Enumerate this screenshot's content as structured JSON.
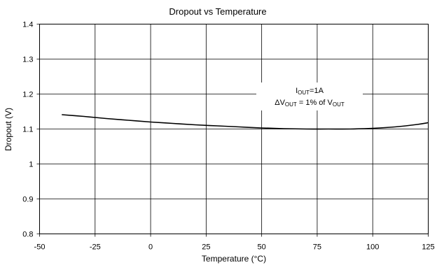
{
  "chart_data": {
    "type": "line",
    "title": "Dropout vs Temperature",
    "xlabel": "Temperature (°C)",
    "ylabel": "Dropout (V)",
    "xlim": [
      -50,
      125
    ],
    "ylim": [
      0.8,
      1.4
    ],
    "x_ticks": [
      -50,
      -25,
      0,
      25,
      50,
      75,
      100,
      125
    ],
    "y_ticks": [
      0.8,
      0.9,
      1,
      1.1,
      1.2,
      1.3,
      1.4
    ],
    "y_tick_labels": [
      "0.8",
      "0.9",
      "1",
      "1.1",
      "1.2",
      "1.3",
      "1.4"
    ],
    "grid": true,
    "series": [
      {
        "x": [
          -40,
          -30,
          -20,
          -10,
          0,
          10,
          20,
          30,
          40,
          50,
          60,
          70,
          80,
          90,
          100,
          110,
          120,
          125
        ],
        "values": [
          1.141,
          1.136,
          1.13,
          1.125,
          1.12,
          1.116,
          1.112,
          1.109,
          1.106,
          1.103,
          1.101,
          1.1,
          1.1,
          1.1,
          1.102,
          1.106,
          1.113,
          1.118
        ]
      }
    ],
    "annotation": {
      "line1": {
        "main": "I",
        "sub": "OUT",
        "rest": "=1A"
      },
      "line2": {
        "delta": "ΔV",
        "sub1": "OUT",
        "mid": " = 1% of V",
        "sub2": "OUT"
      }
    }
  }
}
